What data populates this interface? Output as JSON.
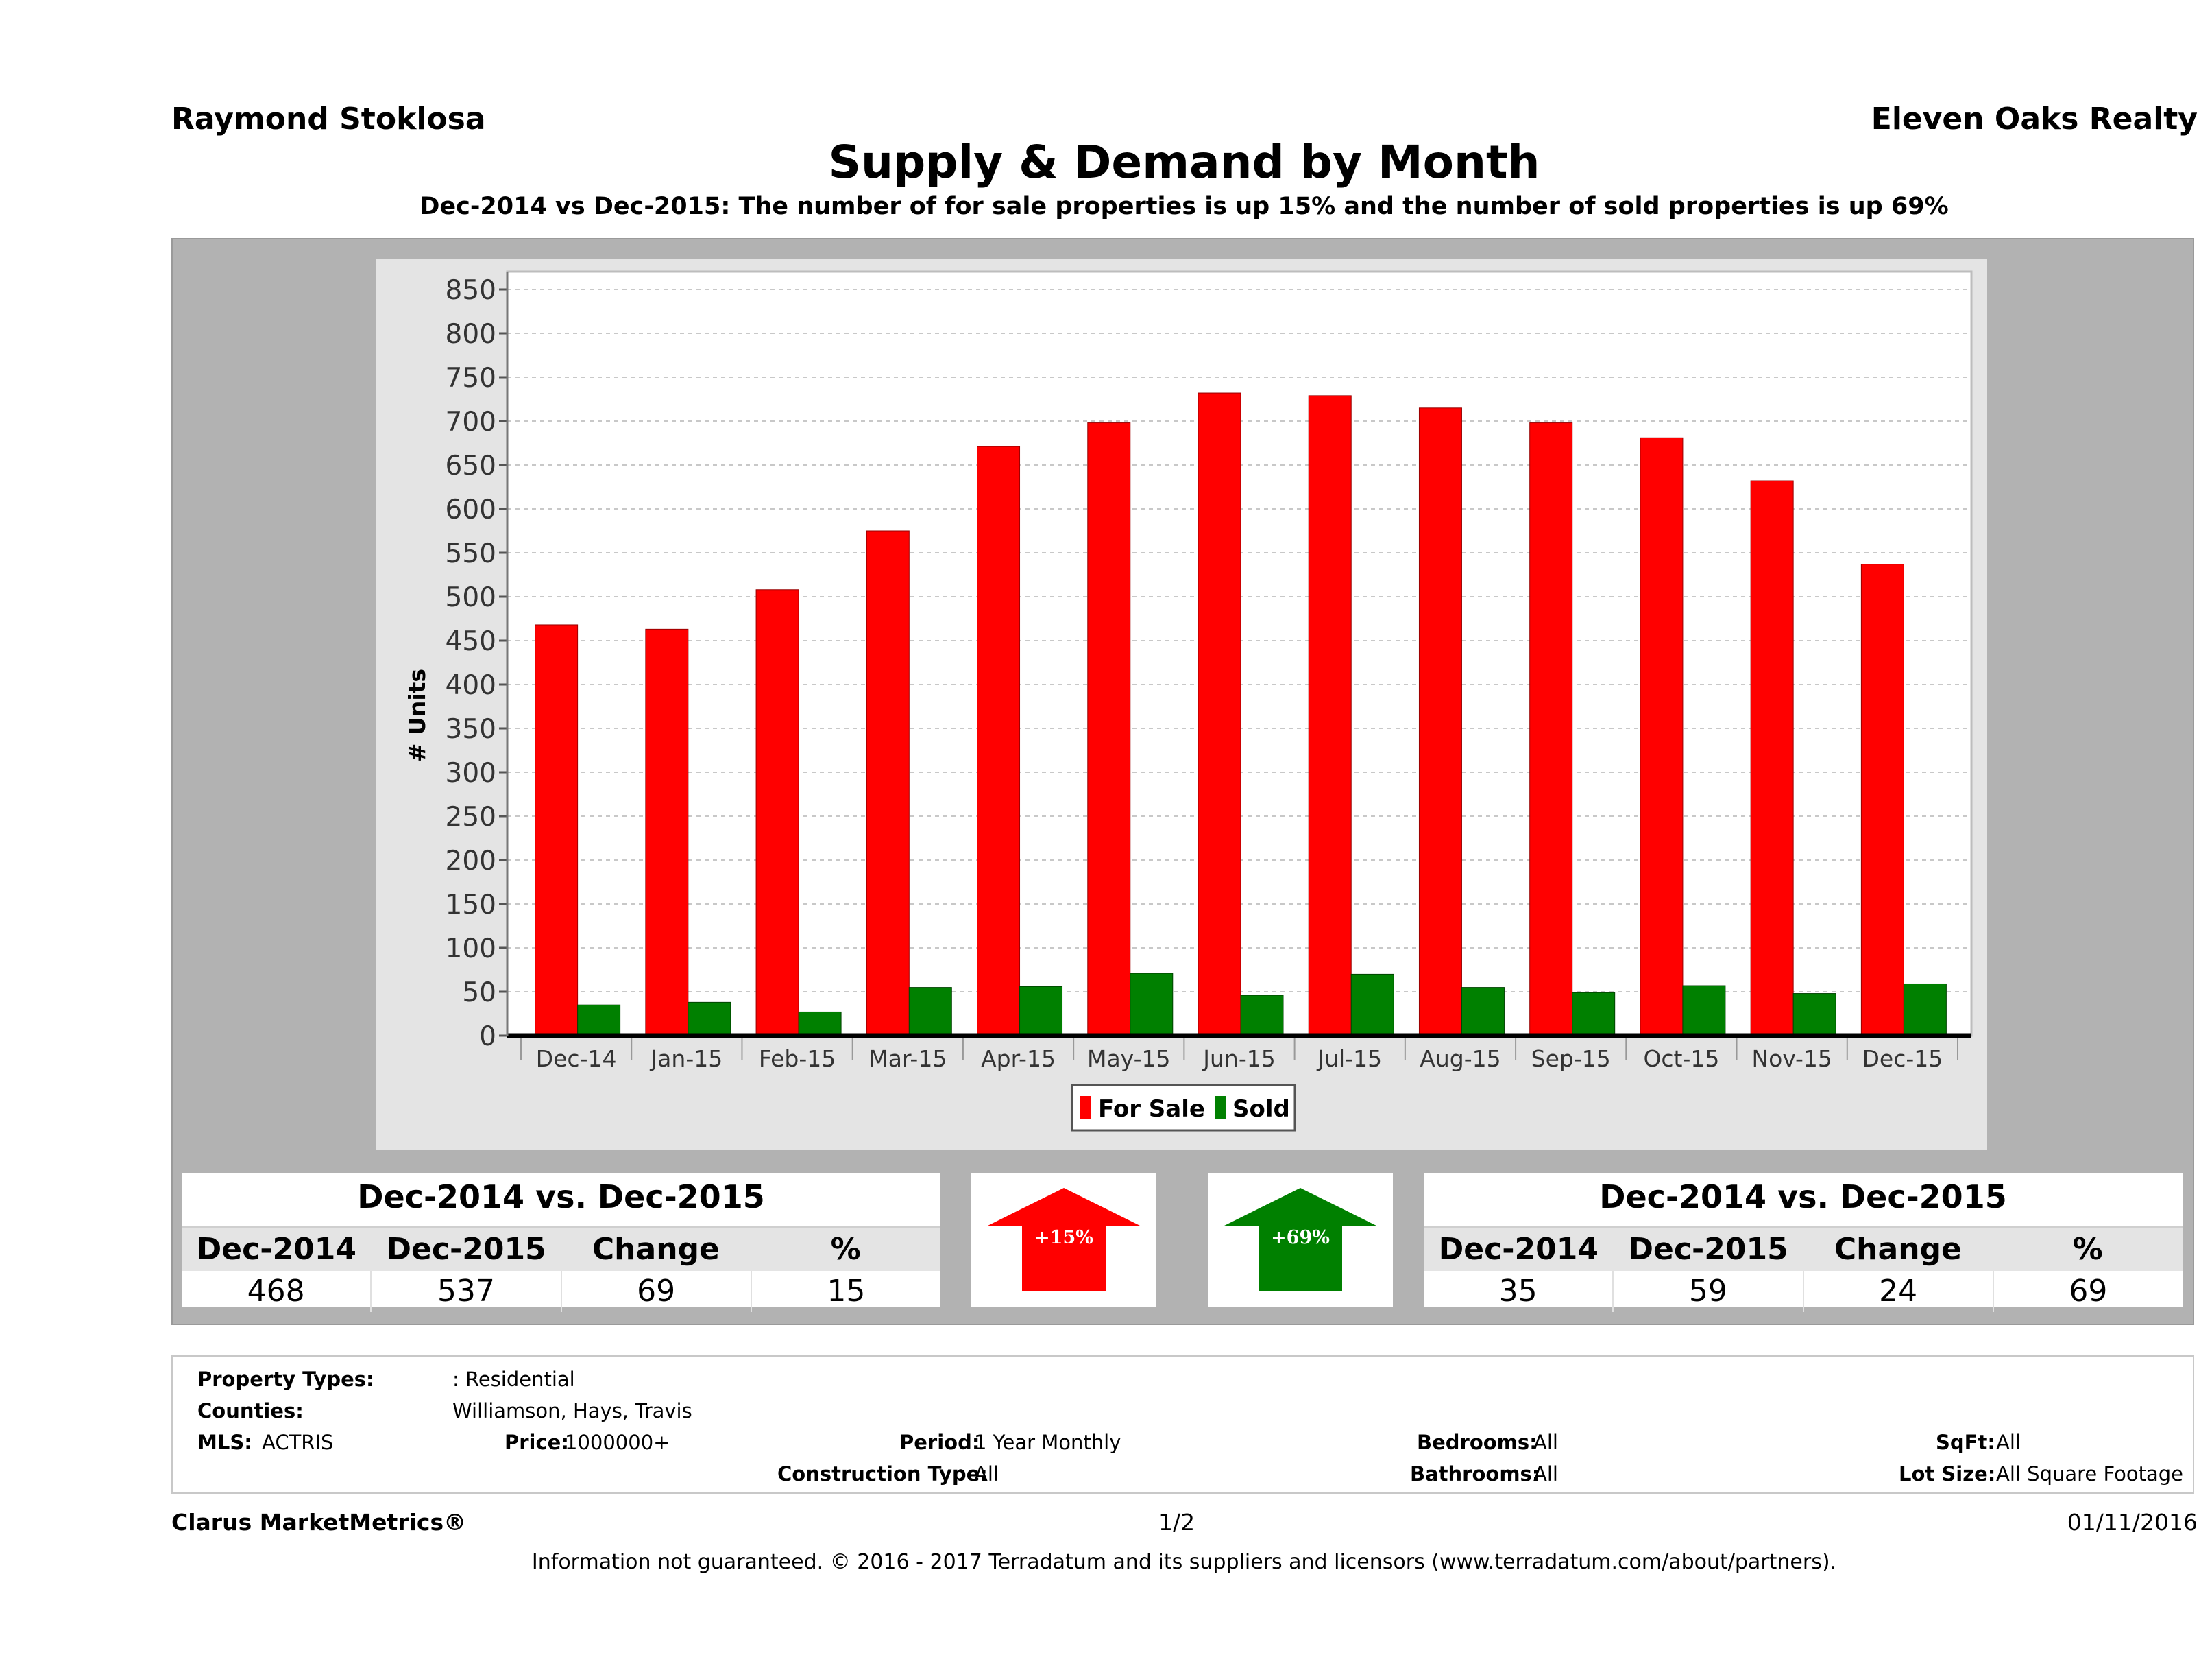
{
  "header": {
    "agent": "Raymond Stoklosa",
    "company": "Eleven Oaks Realty",
    "title": "Supply & Demand by Month",
    "subtitle": "Dec-2014 vs Dec-2015: The number of for sale properties is up 15% and the number of sold properties is up 69%"
  },
  "chart_data": {
    "type": "bar",
    "categories": [
      "Dec-14",
      "Jan-15",
      "Feb-15",
      "Mar-15",
      "Apr-15",
      "May-15",
      "Jun-15",
      "Jul-15",
      "Aug-15",
      "Sep-15",
      "Oct-15",
      "Nov-15",
      "Dec-15"
    ],
    "series": [
      {
        "name": "For Sale",
        "color": "#ff0000",
        "values": [
          468,
          463,
          508,
          575,
          671,
          698,
          732,
          729,
          715,
          698,
          681,
          632,
          537
        ]
      },
      {
        "name": "Sold",
        "color": "#008000",
        "values": [
          35,
          38,
          27,
          55,
          56,
          71,
          46,
          70,
          55,
          49,
          57,
          48,
          59
        ]
      }
    ],
    "ylabel": "# Units",
    "xlabel": "",
    "ylim": [
      0,
      850
    ],
    "yticks": [
      0,
      50,
      100,
      150,
      200,
      250,
      300,
      350,
      400,
      450,
      500,
      550,
      600,
      650,
      700,
      750,
      800,
      850
    ],
    "grid": true,
    "legend_position": "bottom-center"
  },
  "comparison_for_sale": {
    "title": "Dec-2014 vs. Dec-2015",
    "headers": [
      "Dec-2014",
      "Dec-2015",
      "Change",
      "%"
    ],
    "values": [
      "468",
      "537",
      "69",
      "15"
    ],
    "arrow_label": "+15%",
    "arrow_color": "#ff0000"
  },
  "comparison_sold": {
    "title": "Dec-2014 vs. Dec-2015",
    "headers": [
      "Dec-2014",
      "Dec-2015",
      "Change",
      "%"
    ],
    "values": [
      "35",
      "59",
      "24",
      "69"
    ],
    "arrow_label": "+69%",
    "arrow_color": "#008000"
  },
  "filters": {
    "property_types_label": "Property Types:",
    "property_types_value": ": Residential",
    "counties_label": "Counties:",
    "counties_value": "Williamson, Hays, Travis",
    "mls_label": "MLS:",
    "mls_value": "ACTRIS",
    "price_label": "Price:",
    "price_value": "1000000+",
    "period_label": "Period:",
    "period_value": "1 Year Monthly",
    "construction_label": "Construction Type:",
    "construction_value": "All",
    "bedrooms_label": "Bedrooms:",
    "bedrooms_value": "All",
    "bathrooms_label": "Bathrooms:",
    "bathrooms_value": "All",
    "sqft_label": "SqFt:",
    "sqft_value": "All",
    "lotsize_label": "Lot Size:",
    "lotsize_value": "All Square Footage"
  },
  "footer": {
    "brand": "Clarus MarketMetrics®",
    "page": "1/2",
    "date": "01/11/2016",
    "disclaimer": "Information not guaranteed. © 2016 - 2017 Terradatum and its suppliers and licensors (www.terradatum.com/about/partners)."
  }
}
